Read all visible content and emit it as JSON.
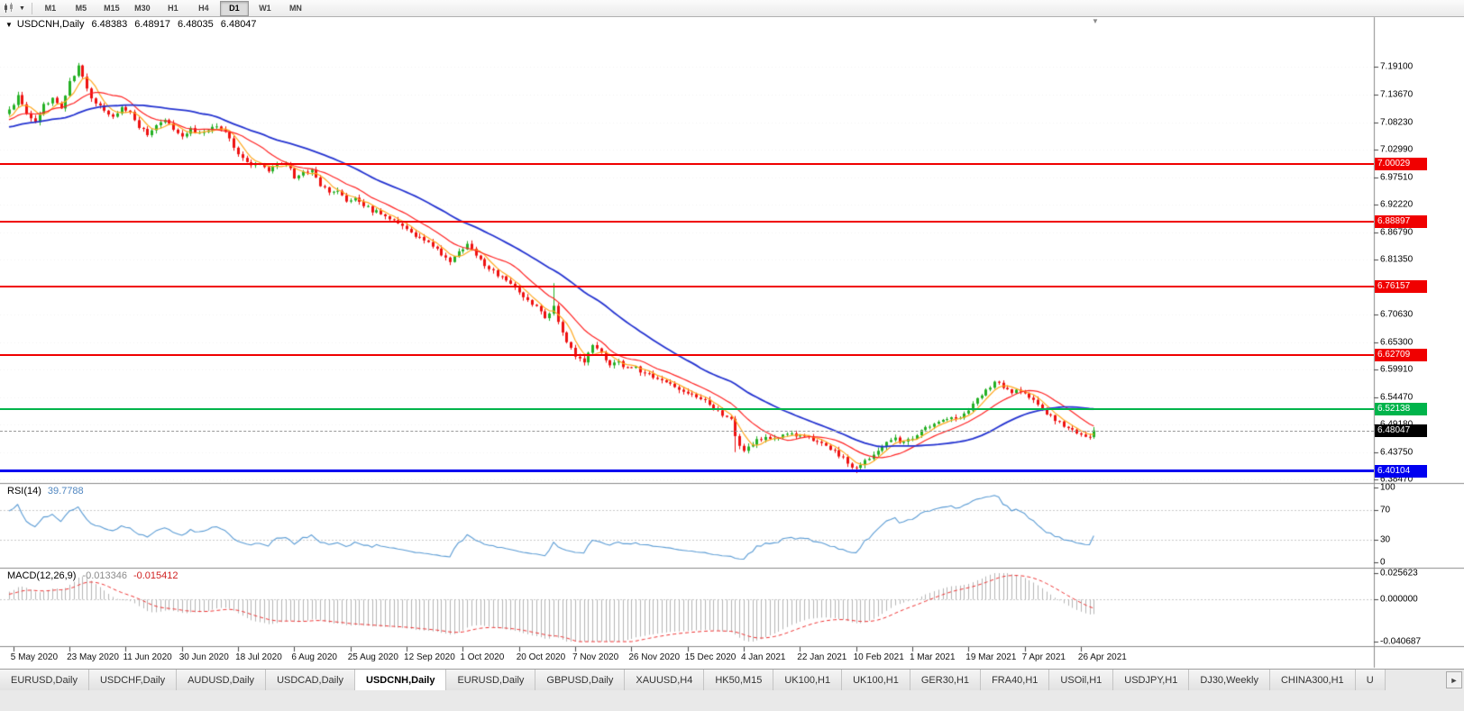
{
  "colors": {
    "up": "#24b024",
    "down": "#ee1111",
    "ma_fast": "#ffa81e",
    "ma_mid": "#ff2222",
    "ma_slow": "#2433d0",
    "rsi": "#5a9bd4",
    "macd_hist": "#b4b4b4",
    "macd_signal": "#ee3333",
    "level_red": "#f00000",
    "level_green": "#00b44b",
    "level_blue": "#0000f0",
    "current": "#000000"
  },
  "toolbar": {
    "timeframes": [
      "M1",
      "M5",
      "M15",
      "M30",
      "H1",
      "H4",
      "D1",
      "W1",
      "MN"
    ],
    "active_timeframe": "D1"
  },
  "chart": {
    "title": "USDCNH,Daily",
    "ohlc": {
      "open": "6.48383",
      "high": "6.48917",
      "low": "6.48035",
      "close": "6.48047"
    }
  },
  "price_axis": {
    "ticks": [
      "7.19100",
      "7.13670",
      "7.08230",
      "7.02990",
      "6.97510",
      "6.92220",
      "6.86790",
      "6.81350",
      "6.76060",
      "6.70630",
      "6.65300",
      "6.59910",
      "6.54470",
      "6.49180",
      "6.43750",
      "6.38470"
    ]
  },
  "levels": [
    {
      "label": "7.00029",
      "price": 7.00029,
      "color_key": "level_red",
      "width": 2
    },
    {
      "label": "6.88897",
      "price": 6.88897,
      "color_key": "level_red",
      "width": 2
    },
    {
      "label": "6.76157",
      "price": 6.76157,
      "color_key": "level_red",
      "width": 2
    },
    {
      "label": "6.62709",
      "price": 6.62709,
      "color_key": "level_red",
      "width": 2
    },
    {
      "label": "6.52138",
      "price": 6.52138,
      "color_key": "level_green",
      "width": 2
    },
    {
      "label": "6.40104",
      "price": 6.40104,
      "color_key": "level_blue",
      "width": 3
    }
  ],
  "current_price": {
    "label": "6.48047",
    "price": 6.48047
  },
  "rsi_panel": {
    "label": "RSI(14)",
    "value": "39.7788",
    "ticks": [
      {
        "label": "100",
        "value": 100
      },
      {
        "label": "70",
        "value": 70
      },
      {
        "label": "30",
        "value": 30
      },
      {
        "label": "0",
        "value": 0
      }
    ],
    "dotted_levels": [
      70,
      30
    ]
  },
  "macd_panel": {
    "label": "MACD(12,26,9)",
    "main_value": "-0.013346",
    "signal_value": "-0.015412",
    "ticks": [
      {
        "label": "0.025623",
        "value": 0.025623
      },
      {
        "label": "0.000000",
        "value": 0
      },
      {
        "label": "-0.040687",
        "value": -0.040687
      }
    ]
  },
  "date_axis": {
    "labels": [
      "5 May 2020",
      "23 May 2020",
      "11 Jun 2020",
      "30 Jun 2020",
      "18 Jul 2020",
      "6 Aug 2020",
      "25 Aug 2020",
      "12 Sep 2020",
      "1 Oct 2020",
      "20 Oct 2020",
      "7 Nov 2020",
      "26 Nov 2020",
      "15 Dec 2020",
      "4 Jan 2021",
      "22 Jan 2021",
      "10 Feb 2021",
      "1 Mar 2021",
      "19 Mar 2021",
      "7 Apr 2021",
      "26 Apr 2021"
    ]
  },
  "tabs": {
    "items": [
      "EURUSD,Daily",
      "USDCHF,Daily",
      "AUDUSD,Daily",
      "USDCAD,Daily",
      "USDCNH,Daily",
      "EURUSD,Daily",
      "GBPUSD,Daily",
      "XAUUSD,H4",
      "HK50,M15",
      "UK100,H1",
      "UK100,H1",
      "GER30,H1",
      "FRA40,H1",
      "USOil,H1",
      "USDJPY,H1",
      "DJ30,Weekly",
      "CHINA300,H1",
      "U"
    ],
    "active_index": 4
  },
  "chart_data": {
    "type": "candlestick",
    "symbol": "USDCNH",
    "timeframe": "Daily",
    "n_bars": 252,
    "price_range": [
      6.3847,
      7.191
    ],
    "x_first_label_index": 1,
    "x_label_step": 13,
    "levels": [
      7.00029,
      6.88897,
      6.76157,
      6.62709,
      6.52138,
      6.40104
    ],
    "moving_averages": [
      {
        "period": 5,
        "color_key": "ma_fast"
      },
      {
        "period": 13,
        "color_key": "ma_mid"
      },
      {
        "period": 34,
        "color_key": "ma_slow"
      }
    ],
    "indicators": [
      {
        "name": "RSI",
        "period": 14,
        "last": 39.7788
      },
      {
        "name": "MACD",
        "fast": 12,
        "slow": 26,
        "signal": 9,
        "last_main": -0.013346,
        "last_signal": -0.015412
      }
    ],
    "preroll_anchors": [
      [
        -45,
        7.06
      ],
      [
        -38,
        7.1
      ],
      [
        -30,
        7.045
      ],
      [
        -22,
        7.09
      ],
      [
        -15,
        7.05
      ],
      [
        -8,
        7.095
      ],
      [
        -3,
        7.08
      ]
    ],
    "close_anchors": [
      [
        0,
        7.105
      ],
      [
        2,
        7.135
      ],
      [
        4,
        7.1
      ],
      [
        6,
        7.08
      ],
      [
        8,
        7.115
      ],
      [
        10,
        7.13
      ],
      [
        12,
        7.11
      ],
      [
        14,
        7.16
      ],
      [
        16,
        7.193
      ],
      [
        17,
        7.175
      ],
      [
        18,
        7.145
      ],
      [
        20,
        7.12
      ],
      [
        22,
        7.105
      ],
      [
        24,
        7.09
      ],
      [
        26,
        7.11
      ],
      [
        28,
        7.1
      ],
      [
        30,
        7.075
      ],
      [
        32,
        7.06
      ],
      [
        34,
        7.075
      ],
      [
        36,
        7.09
      ],
      [
        38,
        7.07
      ],
      [
        40,
        7.055
      ],
      [
        42,
        7.07
      ],
      [
        44,
        7.06
      ],
      [
        46,
        7.065
      ],
      [
        48,
        7.075
      ],
      [
        50,
        7.06
      ],
      [
        52,
        7.035
      ],
      [
        54,
        7.01
      ],
      [
        56,
        6.995
      ],
      [
        58,
        7.005
      ],
      [
        60,
        6.99
      ],
      [
        62,
        7.0
      ],
      [
        64,
        7.005
      ],
      [
        66,
        6.975
      ],
      [
        68,
        6.985
      ],
      [
        70,
        6.99
      ],
      [
        72,
        6.96
      ],
      [
        74,
        6.945
      ],
      [
        76,
        6.95
      ],
      [
        78,
        6.93
      ],
      [
        80,
        6.935
      ],
      [
        82,
        6.92
      ],
      [
        84,
        6.91
      ],
      [
        86,
        6.905
      ],
      [
        88,
        6.895
      ],
      [
        90,
        6.885
      ],
      [
        92,
        6.875
      ],
      [
        94,
        6.86
      ],
      [
        96,
        6.85
      ],
      [
        98,
        6.84
      ],
      [
        100,
        6.825
      ],
      [
        102,
        6.81
      ],
      [
        104,
        6.83
      ],
      [
        106,
        6.845
      ],
      [
        108,
        6.825
      ],
      [
        110,
        6.805
      ],
      [
        112,
        6.79
      ],
      [
        114,
        6.78
      ],
      [
        116,
        6.765
      ],
      [
        118,
        6.75
      ],
      [
        120,
        6.735
      ],
      [
        122,
        6.72
      ],
      [
        124,
        6.7
      ],
      [
        126,
        6.725
      ],
      [
        127,
        6.695
      ],
      [
        129,
        6.655
      ],
      [
        131,
        6.625
      ],
      [
        133,
        6.61
      ],
      [
        135,
        6.65
      ],
      [
        137,
        6.63
      ],
      [
        139,
        6.605
      ],
      [
        141,
        6.615
      ],
      [
        143,
        6.6
      ],
      [
        145,
        6.605
      ],
      [
        147,
        6.59
      ],
      [
        149,
        6.585
      ],
      [
        151,
        6.575
      ],
      [
        153,
        6.57
      ],
      [
        155,
        6.56
      ],
      [
        157,
        6.555
      ],
      [
        159,
        6.545
      ],
      [
        161,
        6.54
      ],
      [
        163,
        6.525
      ],
      [
        165,
        6.51
      ],
      [
        167,
        6.5
      ],
      [
        168,
        6.47
      ],
      [
        169,
        6.45
      ],
      [
        170,
        6.44
      ],
      [
        171,
        6.45
      ],
      [
        173,
        6.46
      ],
      [
        175,
        6.47
      ],
      [
        177,
        6.465
      ],
      [
        179,
        6.47
      ],
      [
        181,
        6.475
      ],
      [
        183,
        6.47
      ],
      [
        185,
        6.465
      ],
      [
        187,
        6.455
      ],
      [
        189,
        6.45
      ],
      [
        191,
        6.44
      ],
      [
        193,
        6.425
      ],
      [
        195,
        6.41
      ],
      [
        196,
        6.405
      ],
      [
        197,
        6.415
      ],
      [
        199,
        6.425
      ],
      [
        201,
        6.44
      ],
      [
        203,
        6.455
      ],
      [
        205,
        6.465
      ],
      [
        207,
        6.455
      ],
      [
        209,
        6.465
      ],
      [
        211,
        6.48
      ],
      [
        213,
        6.49
      ],
      [
        215,
        6.5
      ],
      [
        217,
        6.505
      ],
      [
        219,
        6.5
      ],
      [
        221,
        6.51
      ],
      [
        223,
        6.53
      ],
      [
        225,
        6.55
      ],
      [
        227,
        6.565
      ],
      [
        228,
        6.575
      ],
      [
        230,
        6.565
      ],
      [
        232,
        6.555
      ],
      [
        234,
        6.558
      ],
      [
        236,
        6.545
      ],
      [
        238,
        6.53
      ],
      [
        240,
        6.515
      ],
      [
        242,
        6.5
      ],
      [
        244,
        6.49
      ],
      [
        246,
        6.48
      ],
      [
        248,
        6.472
      ],
      [
        250,
        6.468
      ],
      [
        251,
        6.4805
      ]
    ],
    "wick_spikes": [
      {
        "i": 16,
        "high": 7.197
      },
      {
        "i": 126,
        "high": 6.768
      },
      {
        "i": 168,
        "low": 6.438
      },
      {
        "i": 196,
        "low": 6.397
      }
    ]
  }
}
